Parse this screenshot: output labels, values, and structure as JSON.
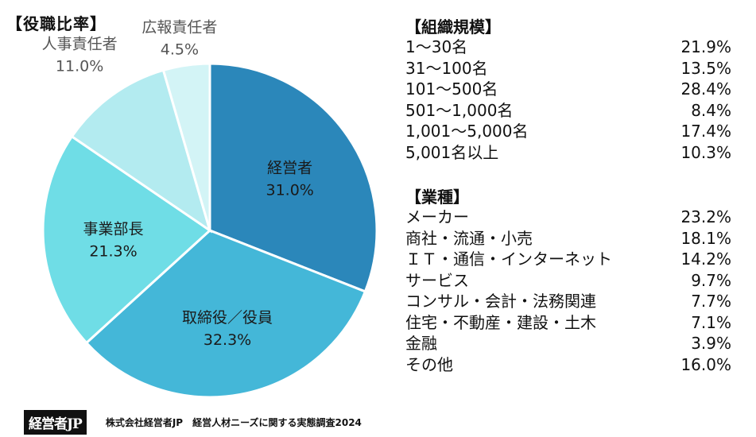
{
  "header": {
    "title": "【役職比率】"
  },
  "chart_data": {
    "type": "pie",
    "title": "【役職比率】",
    "slices": [
      {
        "label": "経営者",
        "value": 31.0,
        "display": "31.0%",
        "color": "#2b87ba",
        "text_color": "#1a1a1a",
        "label_pos": "inside"
      },
      {
        "label": "取締役／役員",
        "value": 32.3,
        "display": "32.3%",
        "color": "#44b7d8",
        "text_color": "#1a1a1a",
        "label_pos": "inside"
      },
      {
        "label": "事業部長",
        "value": 21.3,
        "display": "21.3%",
        "color": "#6fdde6",
        "text_color": "#1a1a1a",
        "label_pos": "inside"
      },
      {
        "label": "人事責任者",
        "value": 11.0,
        "display": "11.0%",
        "color": "#b3ebf0",
        "text_color": "#555555",
        "label_pos": "outside"
      },
      {
        "label": "広報責任者",
        "value": 4.5,
        "display": "4.5%",
        "color": "#d3f4f6",
        "text_color": "#555555",
        "label_pos": "outside"
      }
    ]
  },
  "company_size": {
    "title": "【組織規模】",
    "rows": [
      {
        "name": "1～30名",
        "value": "21.9%"
      },
      {
        "name": "31～100名",
        "value": "13.5%"
      },
      {
        "name": "101～500名",
        "value": "28.4%"
      },
      {
        "name": "501～1,000名",
        "value": "8.4%"
      },
      {
        "name": "1,001～5,000名",
        "value": "17.4%"
      },
      {
        "name": "5,001名以上",
        "value": "10.3%"
      }
    ]
  },
  "industry": {
    "title": "【業種】",
    "rows": [
      {
        "name": "メーカー",
        "value": "23.2%"
      },
      {
        "name": "商社・流通・小売",
        "value": "18.1%"
      },
      {
        "name": "ＩＴ・通信・インターネット",
        "value": "14.2%"
      },
      {
        "name": "サービス",
        "value": "9.7%"
      },
      {
        "name": "コンサル・会計・法務関連",
        "value": "7.7%"
      },
      {
        "name": "住宅・不動産・建設・土木",
        "value": "7.1%"
      },
      {
        "name": "金融",
        "value": "3.9%"
      },
      {
        "name": "その他",
        "value": "16.0%"
      }
    ]
  },
  "footer": {
    "logo_text": "経営者JP",
    "source": "株式会社経営者JP　経営人材ニーズに関する実態調査2024"
  }
}
